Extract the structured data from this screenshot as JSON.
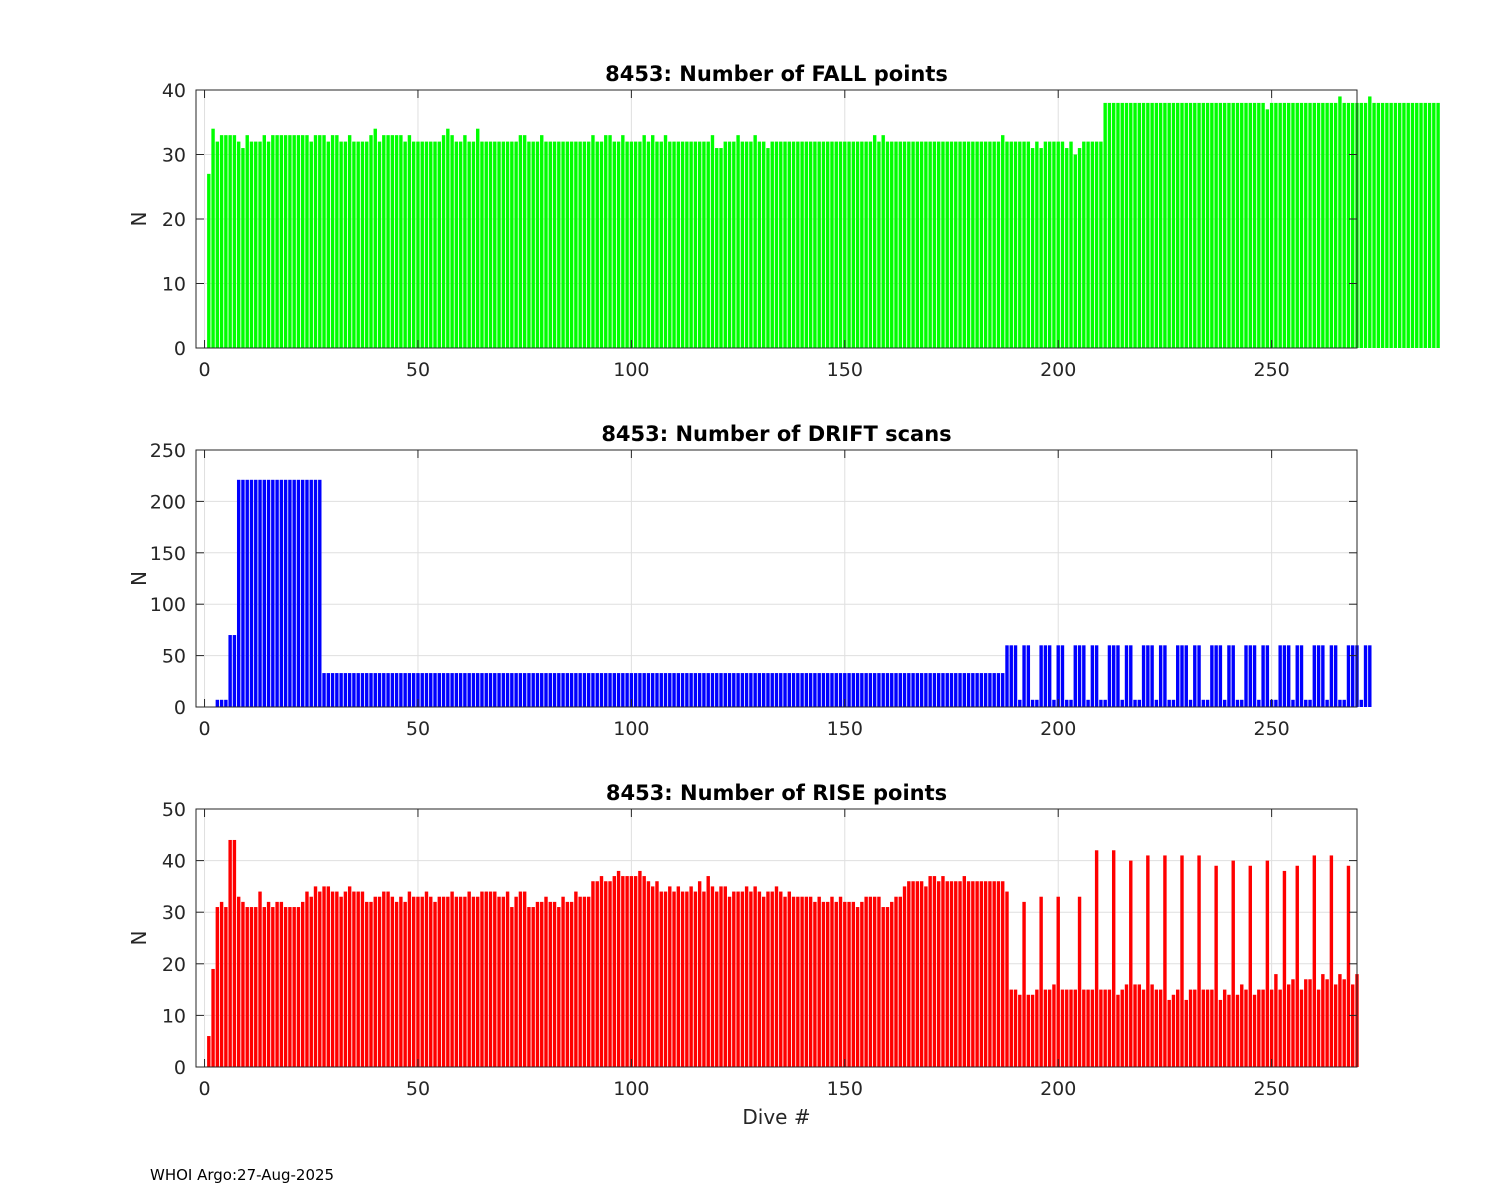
{
  "footer": "WHOI Argo:27-Aug-2025",
  "chart_data": [
    {
      "type": "bar",
      "title": "8453: Number of FALL points",
      "xlabel": "",
      "ylabel": "N",
      "xlim": [
        -2,
        270
      ],
      "ylim": [
        0,
        40
      ],
      "xticks": [
        0,
        50,
        100,
        150,
        200,
        250
      ],
      "yticks": [
        0,
        10,
        20,
        30,
        40
      ],
      "grid": true,
      "color": "#00ff00",
      "values": [
        27,
        34,
        32,
        33,
        33,
        33,
        33,
        32,
        31,
        33,
        32,
        32,
        32,
        33,
        32,
        33,
        33,
        33,
        33,
        33,
        33,
        33,
        33,
        33,
        32,
        33,
        33,
        33,
        32,
        33,
        33,
        32,
        32,
        33,
        32,
        32,
        32,
        32,
        33,
        34,
        32,
        33,
        33,
        33,
        33,
        33,
        32,
        33,
        32,
        32,
        32,
        32,
        32,
        32,
        32,
        33,
        34,
        33,
        32,
        32,
        33,
        32,
        32,
        34,
        32,
        32,
        32,
        32,
        32,
        32,
        32,
        32,
        32,
        33,
        33,
        32,
        32,
        32,
        33,
        32,
        32,
        32,
        32,
        32,
        32,
        32,
        32,
        32,
        32,
        32,
        33,
        32,
        32,
        33,
        33,
        32,
        32,
        33,
        32,
        32,
        32,
        32,
        33,
        32,
        33,
        32,
        32,
        33,
        32,
        32,
        32,
        32,
        32,
        32,
        32,
        32,
        32,
        32,
        33,
        31,
        31,
        32,
        32,
        32,
        33,
        32,
        32,
        32,
        33,
        32,
        32,
        31,
        32,
        32,
        32,
        32,
        32,
        32,
        32,
        32,
        32,
        32,
        32,
        32,
        32,
        32,
        32,
        32,
        32,
        32,
        32,
        32,
        32,
        32,
        32,
        32,
        33,
        32,
        33,
        32,
        32,
        32,
        32,
        32,
        32,
        32,
        32,
        32,
        32,
        32,
        32,
        32,
        32,
        32,
        32,
        32,
        32,
        32,
        32,
        32,
        32,
        32,
        32,
        32,
        32,
        32,
        33,
        32,
        32,
        32,
        32,
        32,
        32,
        31,
        32,
        31,
        32,
        32,
        32,
        32,
        32,
        31,
        32,
        30,
        31,
        32,
        32,
        32,
        32,
        32,
        38,
        38,
        38,
        38,
        38,
        38,
        38,
        38,
        38,
        38,
        38,
        38,
        38,
        38,
        38,
        38,
        38,
        38,
        38,
        38,
        38,
        38,
        38,
        38,
        38,
        38,
        38,
        38,
        38,
        38,
        38,
        38,
        38,
        38,
        38,
        38,
        38,
        38,
        37,
        38,
        38,
        38,
        38,
        38,
        38,
        38,
        38,
        38,
        38,
        38,
        38,
        38,
        38,
        38,
        38,
        39,
        38,
        38,
        38,
        38,
        38,
        38,
        39,
        38,
        38,
        38,
        38,
        38,
        38,
        38,
        38,
        38,
        38,
        38,
        38,
        38,
        38,
        38,
        38
      ]
    },
    {
      "type": "bar",
      "title": "8453: Number of DRIFT scans",
      "xlabel": "",
      "ylabel": "N",
      "xlim": [
        -2,
        270
      ],
      "ylim": [
        0,
        250
      ],
      "xticks": [
        0,
        50,
        100,
        150,
        200,
        250
      ],
      "yticks": [
        0,
        50,
        100,
        150,
        200,
        250
      ],
      "grid": true,
      "color": "#0000ff",
      "values": [
        0,
        0,
        7,
        7,
        7,
        70,
        70,
        221,
        221,
        221,
        221,
        221,
        221,
        221,
        221,
        221,
        221,
        221,
        221,
        221,
        221,
        221,
        221,
        221,
        221,
        221,
        221,
        33,
        33,
        33,
        33,
        33,
        33,
        33,
        33,
        33,
        33,
        33,
        33,
        33,
        33,
        33,
        33,
        33,
        33,
        33,
        33,
        33,
        33,
        33,
        33,
        33,
        33,
        33,
        33,
        33,
        33,
        33,
        33,
        33,
        33,
        33,
        33,
        33,
        33,
        33,
        33,
        33,
        33,
        33,
        33,
        33,
        33,
        33,
        33,
        33,
        33,
        33,
        33,
        33,
        33,
        33,
        33,
        33,
        33,
        33,
        33,
        33,
        33,
        33,
        33,
        33,
        33,
        33,
        33,
        33,
        33,
        33,
        33,
        33,
        33,
        33,
        33,
        33,
        33,
        33,
        33,
        33,
        33,
        33,
        33,
        33,
        33,
        33,
        33,
        33,
        33,
        33,
        33,
        33,
        33,
        33,
        33,
        33,
        33,
        33,
        33,
        33,
        33,
        33,
        33,
        33,
        33,
        33,
        33,
        33,
        33,
        33,
        33,
        33,
        33,
        33,
        33,
        33,
        33,
        33,
        33,
        33,
        33,
        33,
        33,
        33,
        33,
        33,
        33,
        33,
        33,
        33,
        33,
        33,
        33,
        33,
        33,
        33,
        33,
        33,
        33,
        33,
        33,
        33,
        33,
        33,
        33,
        33,
        33,
        33,
        33,
        33,
        33,
        33,
        33,
        33,
        33,
        33,
        33,
        33,
        33,
        60,
        60,
        60,
        7,
        60,
        60,
        7,
        7,
        60,
        60,
        60,
        7,
        60,
        60,
        7,
        7,
        60,
        60,
        60,
        7,
        60,
        60,
        7,
        7,
        60,
        60,
        60,
        7,
        60,
        60,
        7,
        7,
        60,
        60,
        60,
        7,
        60,
        60,
        7,
        7,
        60,
        60,
        60,
        7,
        60,
        60,
        7,
        7,
        60,
        60,
        60,
        7,
        60,
        60,
        7,
        7,
        60,
        60,
        60,
        7,
        60,
        60,
        7,
        7,
        60,
        60,
        60,
        7,
        60,
        60,
        7,
        7,
        60,
        60,
        60,
        7,
        60,
        60,
        7,
        7,
        60,
        60,
        60,
        7,
        60,
        60
      ]
    },
    {
      "type": "bar",
      "title": "8453: Number of RISE points",
      "xlabel": "Dive #",
      "ylabel": "N",
      "xlim": [
        -2,
        270
      ],
      "ylim": [
        0,
        50
      ],
      "xticks": [
        0,
        50,
        100,
        150,
        200,
        250
      ],
      "yticks": [
        0,
        10,
        20,
        30,
        40,
        50
      ],
      "grid": true,
      "color": "#ff0000",
      "values": [
        6,
        19,
        31,
        32,
        31,
        44,
        44,
        33,
        32,
        31,
        31,
        31,
        34,
        31,
        32,
        31,
        32,
        32,
        31,
        31,
        31,
        31,
        32,
        34,
        33,
        35,
        34,
        35,
        35,
        34,
        34,
        33,
        34,
        35,
        34,
        34,
        34,
        32,
        32,
        33,
        33,
        34,
        34,
        33,
        32,
        33,
        32,
        34,
        33,
        33,
        33,
        34,
        33,
        32,
        33,
        33,
        33,
        34,
        33,
        33,
        33,
        34,
        33,
        33,
        34,
        34,
        34,
        34,
        33,
        33,
        34,
        31,
        33,
        34,
        34,
        31,
        31,
        32,
        32,
        33,
        32,
        32,
        31,
        33,
        32,
        32,
        34,
        33,
        33,
        33,
        36,
        36,
        37,
        36,
        36,
        37,
        38,
        37,
        37,
        37,
        37,
        38,
        37,
        36,
        35,
        36,
        34,
        34,
        35,
        34,
        35,
        34,
        34,
        35,
        34,
        36,
        34,
        37,
        35,
        34,
        35,
        35,
        33,
        34,
        34,
        34,
        35,
        34,
        35,
        34,
        33,
        34,
        34,
        35,
        34,
        33,
        34,
        33,
        33,
        33,
        33,
        33,
        32,
        33,
        32,
        32,
        33,
        32,
        33,
        32,
        32,
        32,
        31,
        32,
        33,
        33,
        33,
        33,
        31,
        31,
        32,
        33,
        33,
        35,
        36,
        36,
        36,
        36,
        35,
        37,
        37,
        36,
        37,
        36,
        36,
        36,
        36,
        37,
        36,
        36,
        36,
        36,
        36,
        36,
        36,
        36,
        36,
        34,
        15,
        15,
        14,
        32,
        14,
        14,
        15,
        33,
        15,
        15,
        16,
        33,
        15,
        15,
        15,
        15,
        33,
        15,
        15,
        15,
        42,
        15,
        15,
        15,
        42,
        14,
        15,
        16,
        40,
        16,
        16,
        15,
        41,
        16,
        15,
        15,
        41,
        13,
        14,
        15,
        41,
        13,
        15,
        15,
        41,
        15,
        15,
        15,
        39,
        13,
        15,
        14,
        40,
        14,
        16,
        15,
        39,
        14,
        15,
        15,
        40,
        15,
        18,
        15,
        38,
        16,
        17,
        39,
        15,
        17,
        17,
        41,
        15,
        18,
        17,
        41,
        16,
        18,
        17,
        39,
        16,
        18
      ]
    }
  ]
}
